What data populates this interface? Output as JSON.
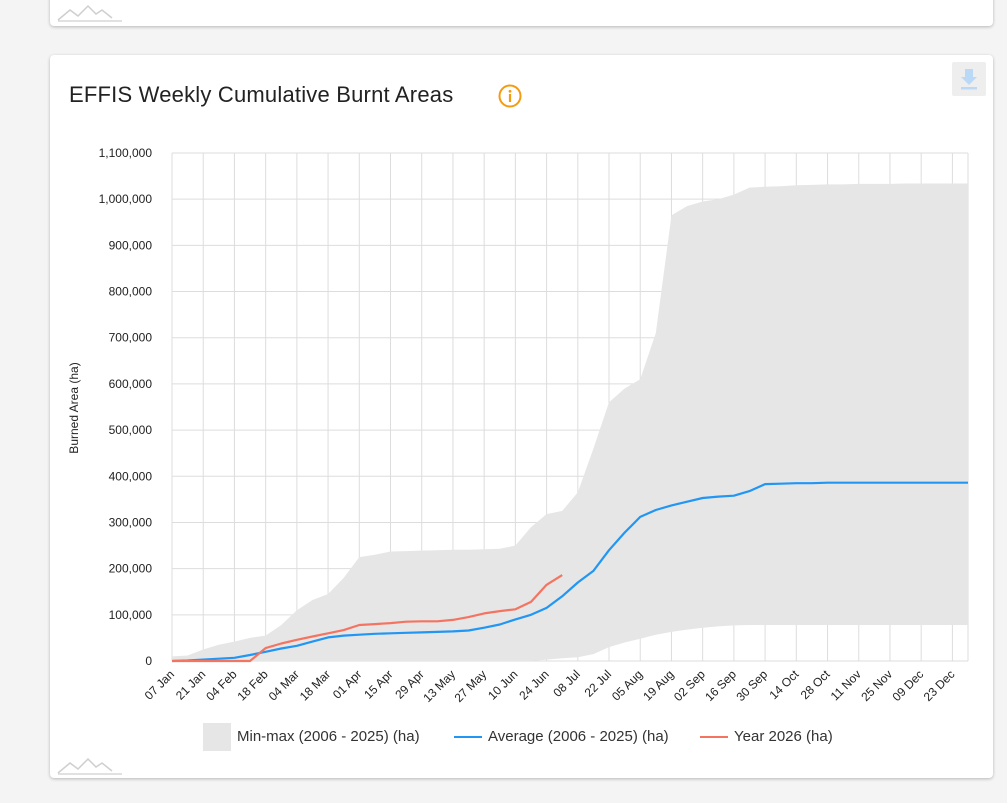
{
  "chart_data": {
    "type": "area",
    "title": "EFFIS Weekly Cumulative Burnt Areas",
    "ylabel": "Burned Area (ha)",
    "ylim": [
      0,
      1100000
    ],
    "yticks": [
      0,
      100000,
      200000,
      300000,
      400000,
      500000,
      600000,
      700000,
      800000,
      900000,
      1000000,
      1100000
    ],
    "ytick_labels": [
      "0",
      "100,000",
      "200,000",
      "300,000",
      "400,000",
      "500,000",
      "600,000",
      "700,000",
      "800,000",
      "900,000",
      "1,000,000",
      "1,100,000"
    ],
    "xtick_labels": [
      "07 Jan",
      "21 Jan",
      "04 Feb",
      "18 Feb",
      "04 Mar",
      "18 Mar",
      "01 Apr",
      "15 Apr",
      "29 Apr",
      "13 May",
      "27 May",
      "10 Jun",
      "24 Jun",
      "08 Jul",
      "22 Jul",
      "05 Aug",
      "19 Aug",
      "02 Sep",
      "16 Sep",
      "30 Sep",
      "14 Oct",
      "28 Oct",
      "11 Nov",
      "25 Nov",
      "09 Dec",
      "23 Dec"
    ],
    "week_count": 52,
    "grid": true,
    "legend_position": "bottom",
    "series": [
      {
        "name": "Min-max (2006 - 2025) (ha)",
        "kind": "range",
        "color": "#e6e6e6",
        "max": [
          10000,
          12000,
          25000,
          35000,
          42000,
          50000,
          55000,
          78000,
          110000,
          132000,
          145000,
          180000,
          225000,
          230000,
          237000,
          238000,
          239000,
          240000,
          241000,
          241000,
          242000,
          243000,
          250000,
          290000,
          318000,
          325000,
          365000,
          460000,
          560000,
          590000,
          610000,
          710000,
          965000,
          985000,
          995000,
          1000000,
          1010000,
          1025000,
          1027000,
          1028000,
          1030000,
          1031000,
          1032000,
          1032000,
          1033000,
          1033000,
          1033000,
          1034000,
          1034000,
          1034000,
          1034000,
          1034000
        ],
        "min": [
          0,
          0,
          0,
          0,
          0,
          0,
          0,
          0,
          0,
          0,
          0,
          0,
          0,
          0,
          0,
          0,
          0,
          0,
          0,
          0,
          0,
          0,
          0,
          0,
          3000,
          6000,
          8000,
          15000,
          30000,
          40000,
          48000,
          57000,
          63000,
          68000,
          72000,
          75000,
          77000,
          78000,
          78000,
          78000,
          78000,
          78000,
          78000,
          78000,
          78000,
          78000,
          78000,
          78000,
          78000,
          78000,
          78000,
          78000
        ]
      },
      {
        "name": "Average (2006 - 2025) (ha)",
        "color": "#2196f3",
        "values": [
          0,
          1000,
          3000,
          5000,
          7000,
          13000,
          20000,
          27000,
          33000,
          42000,
          51000,
          55000,
          57000,
          59000,
          60000,
          61000,
          62000,
          63000,
          64000,
          66000,
          72000,
          79000,
          90000,
          100000,
          115000,
          140000,
          170000,
          195000,
          240000,
          278000,
          312000,
          327000,
          337000,
          345000,
          353000,
          356000,
          358000,
          368000,
          383000,
          384000,
          385000,
          385000,
          386000,
          386000,
          386000,
          386000,
          386000,
          386000,
          386000,
          386000,
          386000,
          386000
        ]
      },
      {
        "name": "Year 2026 (ha)",
        "color": "#f47462",
        "values": [
          0,
          0,
          0,
          0,
          0,
          0,
          28000,
          38000,
          46000,
          53000,
          60000,
          67000,
          78000,
          80000,
          82000,
          85000,
          86000,
          86000,
          89000,
          95000,
          103000,
          108000,
          112000,
          128000,
          165000,
          186000
        ]
      }
    ]
  },
  "ui": {
    "download_icon": "download-icon",
    "info_icon": "info-icon",
    "logo_icon": "mountain-logo-icon",
    "accent_info": "#f39c12"
  }
}
